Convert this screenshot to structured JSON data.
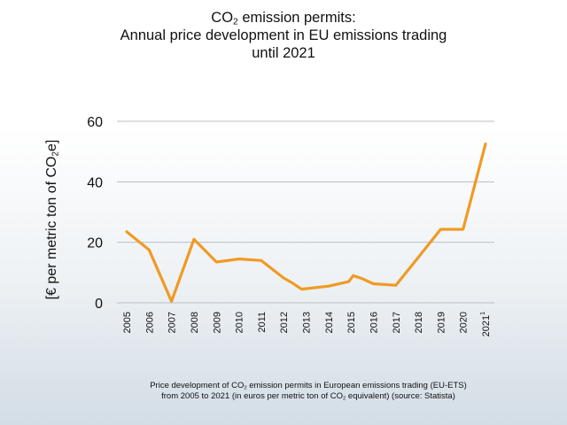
{
  "title_parts": {
    "line1_a": "CO",
    "line1_sub": "2",
    "line1_b": " emission permits:",
    "line2": "Annual price development in EU emissions trading",
    "line3": "until 2021"
  },
  "ylabel_parts": {
    "a": "[€ per metric ton of CO",
    "sub": "2",
    "b": "e]"
  },
  "caption_parts": {
    "l1a": "Price development of CO",
    "l1sub": "2",
    "l1b": " emission permits in European emissions trading (EU-ETS)",
    "l2a": "from 2005 to 2021 (in euros per metric ton of CO",
    "l2sub": "2",
    "l2b": " equivalent) (source: Statista)"
  },
  "colors": {
    "line": "#f09a24",
    "grid": "#b9bfc4",
    "text": "#111111"
  },
  "chart_data": {
    "type": "line",
    "ylim": [
      0,
      60
    ],
    "xlim": [
      2005,
      2021
    ],
    "yticks": [
      0,
      20,
      40,
      60
    ],
    "xticks": [
      {
        "value": 2005,
        "label": "2005"
      },
      {
        "value": 2006,
        "label": "2006"
      },
      {
        "value": 2007,
        "label": "2007"
      },
      {
        "value": 2008,
        "label": "2008"
      },
      {
        "value": 2009,
        "label": "2009"
      },
      {
        "value": 2010,
        "label": "2010"
      },
      {
        "value": 2011,
        "label": "2011"
      },
      {
        "value": 2012,
        "label": "2012"
      },
      {
        "value": 2013,
        "label": "2013"
      },
      {
        "value": 2014,
        "label": "2014"
      },
      {
        "value": 2015,
        "label": "2015"
      },
      {
        "value": 2016,
        "label": "2016"
      },
      {
        "value": 2017,
        "label": "2017"
      },
      {
        "value": 2018,
        "label": "2018"
      },
      {
        "value": 2019,
        "label": "2019"
      },
      {
        "value": 2020,
        "label": "2020"
      },
      {
        "value": 2021,
        "label": "2021",
        "sup": "1"
      }
    ],
    "grid": "horizontal",
    "series": [
      {
        "points": [
          [
            2005,
            23.5
          ],
          [
            2006,
            17.5
          ],
          [
            2007,
            0.5
          ],
          [
            2008,
            21.0
          ],
          [
            2009,
            13.5
          ],
          [
            2010,
            14.5
          ],
          [
            2011,
            14.0
          ],
          [
            2012,
            8.2
          ],
          [
            2012.4,
            6.5
          ],
          [
            2012.8,
            4.5
          ],
          [
            2014,
            5.5
          ],
          [
            2014.9,
            7.0
          ],
          [
            2015.1,
            9.0
          ],
          [
            2015.5,
            8.0
          ],
          [
            2016,
            6.3
          ],
          [
            2017,
            5.8
          ],
          [
            2018,
            15.0
          ],
          [
            2019,
            24.3
          ],
          [
            2020,
            24.3
          ],
          [
            2021,
            52.5
          ]
        ]
      }
    ]
  }
}
